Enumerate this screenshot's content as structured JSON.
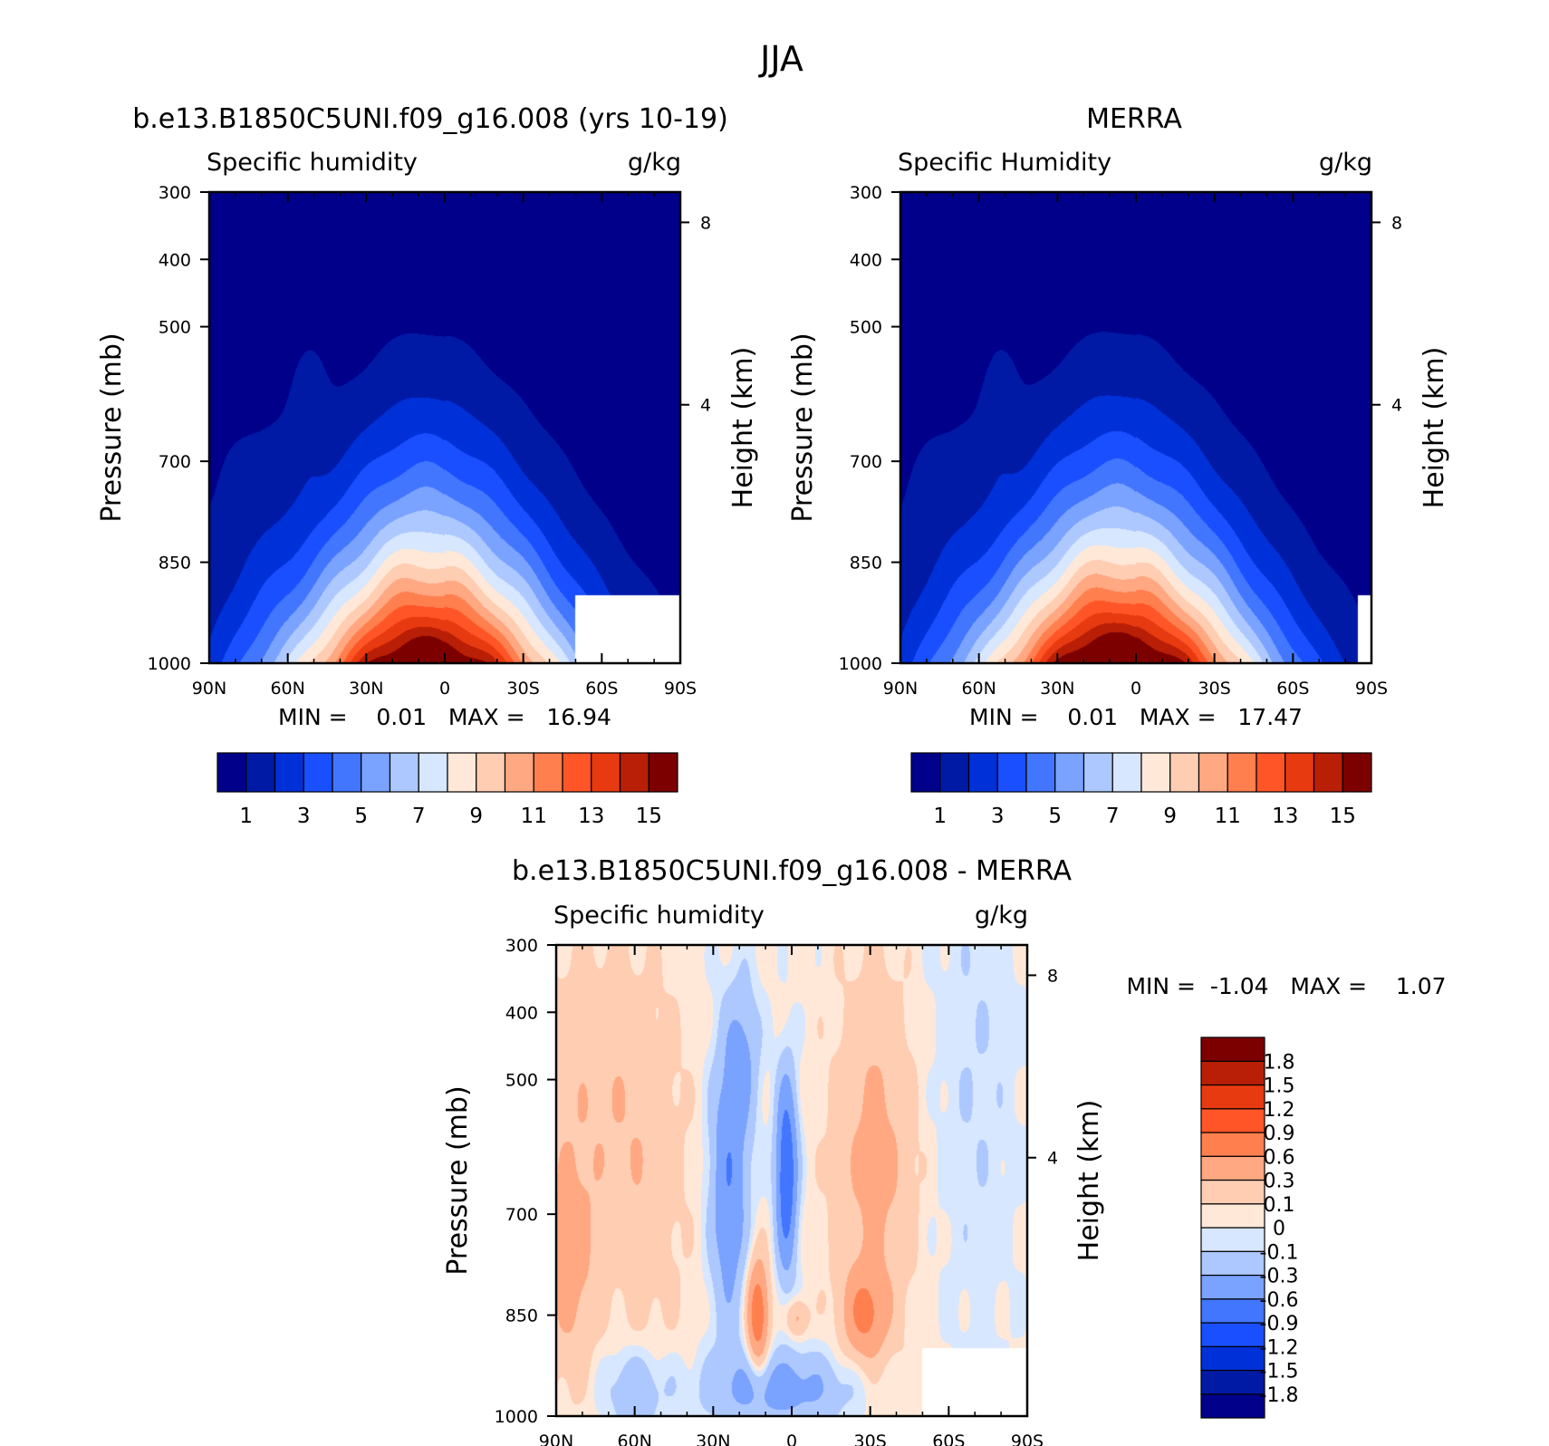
{
  "figure_title": "JJA",
  "chart_data": [
    {
      "type": "heatmap",
      "title": "b.e13.B1850C5UNI.f09_g16.008 (yrs 10-19)",
      "subtitle_left": "Specific humidity",
      "subtitle_right": "g/kg",
      "xlabel": "",
      "ylabel": "Pressure (mb)",
      "ylabel_right": "Height (km)",
      "x_ticks": [
        "90N",
        "60N",
        "30N",
        "0",
        "30S",
        "60S",
        "90S"
      ],
      "x_range": [
        90,
        -90
      ],
      "y_ticks": [
        "300",
        "400",
        "500",
        "700",
        "850",
        "1000"
      ],
      "y_range": [
        300,
        1000
      ],
      "y_right_ticks": [
        "8",
        "4"
      ],
      "stats_text": "MIN =    0.01   MAX =   16.94",
      "min": 0.01,
      "max": 16.94,
      "field": {
        "peak": 16.94,
        "peak_lat": 8,
        "bg": 0.5,
        "ridge_top": 340,
        "below_ground_lats": [
          -50,
          -90
        ]
      },
      "colorbar": {
        "orientation": "horizontal",
        "levels": [
          0,
          1,
          2,
          3,
          4,
          5,
          6,
          7,
          8,
          9,
          10,
          11,
          12,
          13,
          14,
          15,
          16
        ],
        "labels": [
          "1",
          "3",
          "5",
          "7",
          "9",
          "11",
          "13",
          "15"
        ],
        "colors": [
          "#00008b",
          "#001aa6",
          "#0030d8",
          "#1a4fff",
          "#4276ff",
          "#7aa2ff",
          "#adc8ff",
          "#d7e7ff",
          "#ffe8d8",
          "#ffcdb2",
          "#ffa882",
          "#ff7f4f",
          "#ff5527",
          "#e83a10",
          "#b81f06",
          "#7d0000"
        ]
      }
    },
    {
      "type": "heatmap",
      "title": "MERRA",
      "subtitle_left": "Specific Humidity",
      "subtitle_right": "g/kg",
      "xlabel": "",
      "ylabel": "Pressure (mb)",
      "ylabel_right": "Height (km)",
      "x_ticks": [
        "90N",
        "60N",
        "30N",
        "0",
        "30S",
        "60S",
        "90S"
      ],
      "x_range": [
        90,
        -90
      ],
      "y_ticks": [
        "300",
        "400",
        "500",
        "700",
        "850",
        "1000"
      ],
      "y_range": [
        300,
        1000
      ],
      "y_right_ticks": [
        "8",
        "4"
      ],
      "stats_text": "MIN =    0.01   MAX =   17.47",
      "min": 0.01,
      "max": 17.47,
      "field": {
        "peak": 17.47,
        "peak_lat": 8,
        "bg": 0.5,
        "ridge_top": 340,
        "below_ground_lats": [
          -85,
          -90
        ]
      },
      "colorbar": {
        "orientation": "horizontal",
        "levels": [
          0,
          1,
          2,
          3,
          4,
          5,
          6,
          7,
          8,
          9,
          10,
          11,
          12,
          13,
          14,
          15,
          16
        ],
        "labels": [
          "1",
          "3",
          "5",
          "7",
          "9",
          "11",
          "13",
          "15"
        ],
        "colors": [
          "#00008b",
          "#001aa6",
          "#0030d8",
          "#1a4fff",
          "#4276ff",
          "#7aa2ff",
          "#adc8ff",
          "#d7e7ff",
          "#ffe8d8",
          "#ffcdb2",
          "#ffa882",
          "#ff7f4f",
          "#ff5527",
          "#e83a10",
          "#b81f06",
          "#7d0000"
        ]
      }
    },
    {
      "type": "heatmap",
      "title": "b.e13.B1850C5UNI.f09_g16.008 - MERRA",
      "subtitle_left": "Specific humidity",
      "subtitle_right": "g/kg",
      "xlabel": "",
      "ylabel": "Pressure (mb)",
      "ylabel_right": "Height (km)",
      "x_ticks": [
        "90N",
        "60N",
        "30N",
        "0",
        "30S",
        "60S",
        "90S"
      ],
      "x_range": [
        90,
        -90
      ],
      "y_ticks": [
        "300",
        "400",
        "500",
        "700",
        "850",
        "1000"
      ],
      "y_range": [
        300,
        1000
      ],
      "y_right_ticks": [
        "8",
        "4"
      ],
      "stats_text": "MIN =  -1.04   MAX =    1.07",
      "min": -1.04,
      "max": 1.07,
      "field": {
        "bg": 0.03,
        "blobs": [
          {
            "lat": 75,
            "p": 520,
            "amp": 0.22,
            "slat": 25,
            "sp": 220
          },
          {
            "lat": 85,
            "p": 780,
            "amp": 0.35,
            "slat": 10,
            "sp": 160
          },
          {
            "lat": 55,
            "p": 680,
            "amp": 0.15,
            "slat": 14,
            "sp": 250
          },
          {
            "lat": -32,
            "p": 620,
            "amp": 0.35,
            "slat": 15,
            "sp": 260
          },
          {
            "lat": -28,
            "p": 850,
            "amp": 0.55,
            "slat": 8,
            "sp": 65
          },
          {
            "lat": 13,
            "p": 850,
            "amp": 0.85,
            "slat": 4,
            "sp": 80
          },
          {
            "lat": -2,
            "p": 855,
            "amp": 0.35,
            "slat": 4,
            "sp": 28
          },
          {
            "lat": 24,
            "p": 650,
            "amp": -0.6,
            "slat": 7,
            "sp": 210
          },
          {
            "lat": 2,
            "p": 640,
            "amp": -0.95,
            "slat": 4,
            "sp": 140
          },
          {
            "lat": 18,
            "p": 460,
            "amp": -0.3,
            "slat": 6,
            "sp": 110
          },
          {
            "lat": 5,
            "p": 960,
            "amp": -0.45,
            "slat": 28,
            "sp": 55
          },
          {
            "lat": 60,
            "p": 960,
            "amp": -0.3,
            "slat": 12,
            "sp": 60
          },
          {
            "lat": -70,
            "p": 500,
            "amp": -0.12,
            "slat": 18,
            "sp": 420
          }
        ],
        "below_ground_lats": [
          -50,
          -90
        ]
      },
      "colorbar": {
        "orientation": "vertical",
        "levels": [
          -2.1,
          -1.8,
          -1.5,
          -1.2,
          -0.9,
          -0.6,
          -0.3,
          -0.1,
          0,
          0.1,
          0.3,
          0.6,
          0.9,
          1.2,
          1.5,
          1.8,
          2.1
        ],
        "labels": [
          "1.8",
          "1.5",
          "1.2",
          "0.9",
          "0.6",
          "0.3",
          "0.1",
          "0",
          "-0.1",
          "-0.3",
          "-0.6",
          "-0.9",
          "-1.2",
          "-1.5",
          "-1.8"
        ],
        "colors": [
          "#00008b",
          "#001aa6",
          "#0030d8",
          "#1a4fff",
          "#4276ff",
          "#7aa2ff",
          "#adc8ff",
          "#d7e7ff",
          "#ffe8d8",
          "#ffcdb2",
          "#ffa882",
          "#ff7f4f",
          "#ff5527",
          "#e83a10",
          "#b81f06",
          "#7d0000"
        ]
      }
    }
  ]
}
